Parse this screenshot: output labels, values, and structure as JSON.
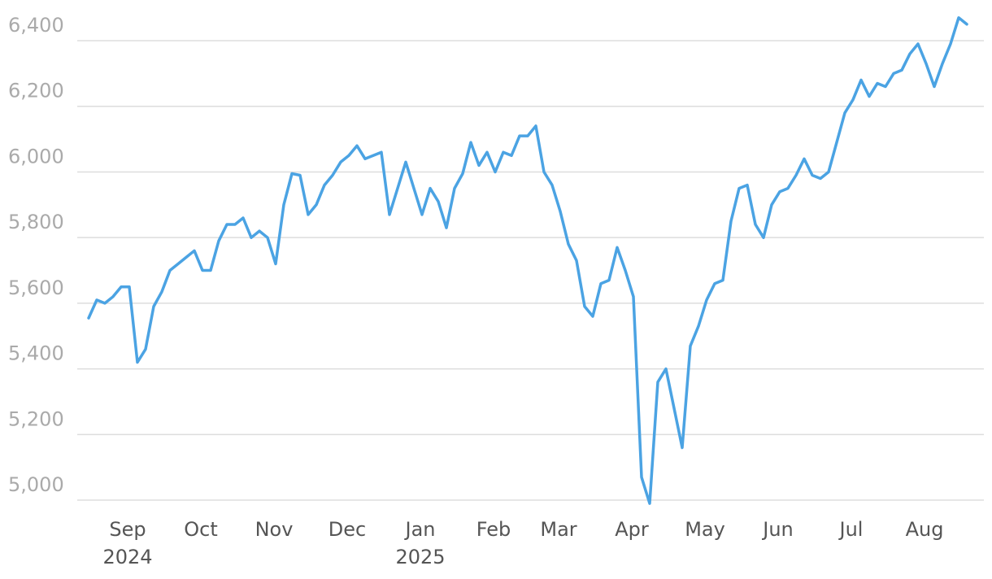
{
  "chart_data": {
    "type": "line",
    "categories": [
      null,
      null,
      null,
      null,
      null,
      "Sep",
      null,
      null,
      null,
      null,
      null,
      null,
      null,
      null,
      "Oct",
      null,
      null,
      null,
      null,
      null,
      null,
      null,
      null,
      "Nov",
      null,
      null,
      null,
      null,
      null,
      null,
      null,
      null,
      "Dec",
      null,
      null,
      null,
      null,
      null,
      null,
      null,
      null,
      "Jan",
      null,
      null,
      null,
      null,
      null,
      null,
      null,
      null,
      "Feb",
      null,
      null,
      null,
      null,
      null,
      null,
      null,
      "Mar",
      null,
      null,
      null,
      null,
      null,
      null,
      null,
      null,
      "Apr",
      null,
      null,
      null,
      null,
      null,
      null,
      null,
      null,
      "May",
      null,
      null,
      null,
      null,
      null,
      null,
      null,
      null,
      "Jun",
      null,
      null,
      null,
      null,
      null,
      null,
      null,
      null,
      "Jul",
      null,
      null,
      null,
      null,
      null,
      null,
      null,
      null,
      "Aug",
      null,
      null,
      null,
      null,
      null
    ],
    "year_labels": [
      null,
      null,
      null,
      null,
      null,
      "2024",
      null,
      null,
      null,
      null,
      null,
      null,
      null,
      null,
      null,
      null,
      null,
      null,
      null,
      null,
      null,
      null,
      null,
      null,
      null,
      null,
      null,
      null,
      null,
      null,
      null,
      null,
      null,
      null,
      null,
      null,
      null,
      null,
      null,
      null,
      null,
      "2025",
      null,
      null,
      null,
      null,
      null,
      null,
      null,
      null,
      null,
      null,
      null,
      null,
      null,
      null,
      null,
      null,
      null,
      null,
      null,
      null,
      null,
      null,
      null,
      null,
      null,
      null,
      null,
      null,
      null,
      null,
      null,
      null,
      null,
      null,
      null,
      null,
      null,
      null,
      null,
      null,
      null,
      null,
      null,
      null,
      null,
      null,
      null,
      null,
      null,
      null,
      null,
      null,
      null,
      null,
      null,
      null,
      null,
      null,
      null,
      null,
      null,
      null,
      null,
      null,
      null,
      null,
      null
    ],
    "values": [
      5555,
      5610,
      5600,
      5620,
      5650,
      5650,
      5420,
      5460,
      5590,
      5635,
      5700,
      5720,
      5740,
      5760,
      5700,
      5700,
      5790,
      5840,
      5840,
      5860,
      5800,
      5820,
      5800,
      5720,
      5900,
      5995,
      5990,
      5870,
      5900,
      5960,
      5990,
      6030,
      6050,
      6080,
      6040,
      6050,
      6060,
      5870,
      5950,
      6030,
      5950,
      5870,
      5950,
      5910,
      5830,
      5950,
      5995,
      6090,
      6020,
      6060,
      6000,
      6060,
      6050,
      6110,
      6110,
      6140,
      6000,
      5960,
      5880,
      5780,
      5730,
      5590,
      5560,
      5660,
      5670,
      5770,
      5700,
      5620,
      5070,
      4990,
      5360,
      5400,
      5280,
      5160,
      5470,
      5530,
      5610,
      5660,
      5670,
      5850,
      5950,
      5960,
      5840,
      5800,
      5900,
      5940,
      5950,
      5990,
      6040,
      5990,
      5980,
      6000,
      6090,
      6180,
      6220,
      6280,
      6230,
      6270,
      6260,
      6300,
      6310,
      6360,
      6390,
      6330,
      6260,
      6330,
      6390,
      6470,
      6450
    ],
    "color": "#4ba3e3",
    "ylim": [
      4975,
      6500
    ],
    "yticks": [
      {
        "value": 5000,
        "label": "5,000"
      },
      {
        "value": 5200,
        "label": "5,200"
      },
      {
        "value": 5400,
        "label": "5,400"
      },
      {
        "value": 5600,
        "label": "5,600"
      },
      {
        "value": 5800,
        "label": "5,800"
      },
      {
        "value": 6000,
        "label": "6,000"
      },
      {
        "value": 6200,
        "label": "6,200"
      },
      {
        "value": 6400,
        "label": "6,400"
      }
    ],
    "grid": true
  }
}
